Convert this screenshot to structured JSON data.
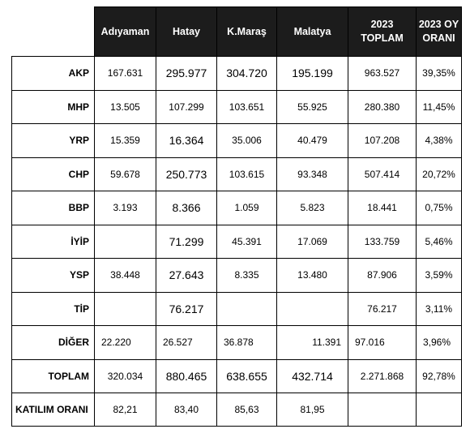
{
  "headers": [
    "Adıyaman",
    "Hatay",
    "K.Maraş",
    "Malatya",
    "2023\nTOPLAM",
    "2023 OY\nORANI"
  ],
  "rows": [
    {
      "party": "AKP",
      "adiyaman": "167.631",
      "hatay": "295.977",
      "kmaras": "304.720",
      "malatya": "195.199",
      "toplam": "963.527",
      "oran": "39,35%"
    },
    {
      "party": "MHP",
      "adiyaman": "13.505",
      "hatay": "107.299",
      "kmaras": "103.651",
      "malatya": "55.925",
      "toplam": "280.380",
      "oran": "11,45%"
    },
    {
      "party": "YRP",
      "adiyaman": "15.359",
      "hatay": "16.364",
      "kmaras": "35.006",
      "malatya": "40.479",
      "toplam": "107.208",
      "oran": "4,38%"
    },
    {
      "party": "CHP",
      "adiyaman": "59.678",
      "hatay": "250.773",
      "kmaras": "103.615",
      "malatya": "93.348",
      "toplam": "507.414",
      "oran": "20,72%"
    },
    {
      "party": "BBP",
      "adiyaman": "3.193",
      "hatay": "8.366",
      "kmaras": "1.059",
      "malatya": "5.823",
      "toplam": "18.441",
      "oran": "0,75%"
    },
    {
      "party": "İYİP",
      "adiyaman": "",
      "hatay": "71.299",
      "kmaras": "45.391",
      "malatya": "17.069",
      "toplam": "133.759",
      "oran": "5,46%"
    },
    {
      "party": "YSP",
      "adiyaman": "38.448",
      "hatay": "27.643",
      "kmaras": "8.335",
      "malatya": "13.480",
      "toplam": "87.906",
      "oran": "3,59%"
    },
    {
      "party": "TİP",
      "adiyaman": "",
      "hatay": "76.217",
      "kmaras": "",
      "malatya": "",
      "toplam": "76.217",
      "oran": "3,11%"
    },
    {
      "party": "DİĞER",
      "adiyaman": "22.220",
      "hatay": "26.527",
      "kmaras": "36.878",
      "malatya": "11.391",
      "toplam": "97.016",
      "oran": "3,96%"
    },
    {
      "party": "TOPLAM",
      "adiyaman": "320.034",
      "hatay": "880.465",
      "kmaras": "638.655",
      "malatya": "432.714",
      "toplam": "2.271.868",
      "oran": "92,78%"
    },
    {
      "party": "KATILIM ORANI",
      "adiyaman": "82,21",
      "hatay": "83,40",
      "kmaras": "85,63",
      "malatya": "81,95",
      "toplam": "",
      "oran": ""
    }
  ]
}
